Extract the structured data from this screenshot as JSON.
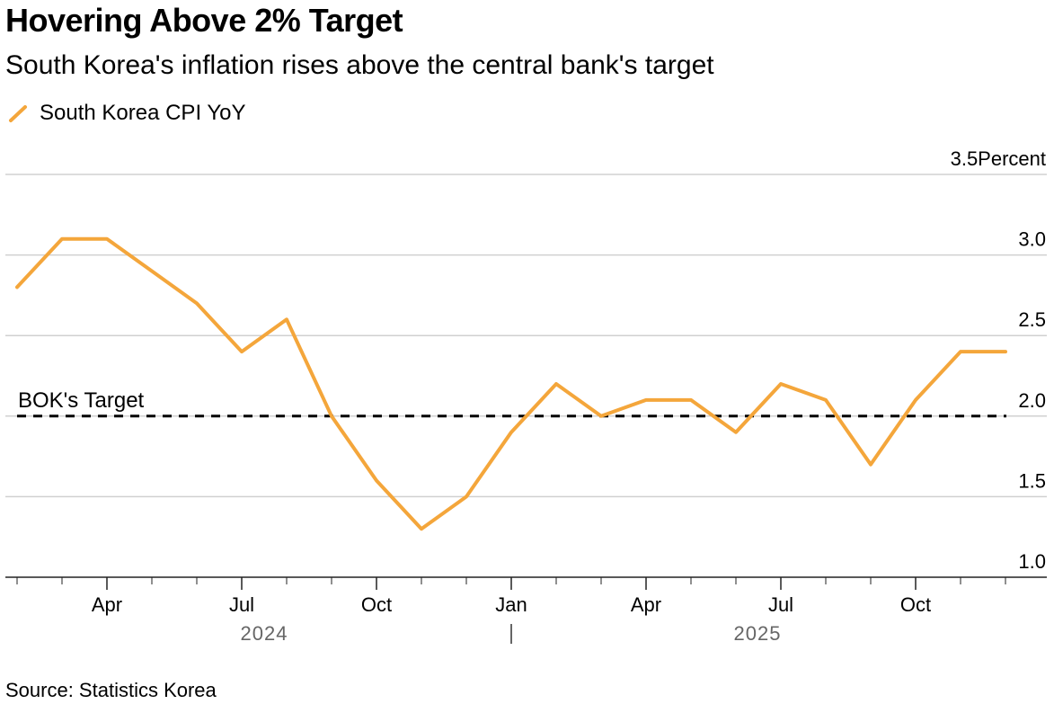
{
  "header": {
    "title": "Hovering Above 2% Target",
    "subtitle": "South Korea's inflation rises above the central bank's target"
  },
  "legend": {
    "label": "South Korea CPI YoY"
  },
  "source": "Source: Statistics Korea",
  "colors": {
    "series": "#f4a63b",
    "grid": "#d0d0d0",
    "axis": "#222222",
    "year_label": "#666666"
  },
  "chart_data": {
    "type": "line",
    "title": "Hovering Above 2% Target",
    "subtitle": "South Korea's inflation rises above the central bank's target",
    "ylabel": "Percent",
    "ylim": [
      1.0,
      3.5
    ],
    "yticks": [
      1.0,
      1.5,
      2.0,
      2.5,
      3.0,
      3.5
    ],
    "ytick_labels": [
      "1.0",
      "1.5",
      "2.0",
      "2.5",
      "3.0",
      "3.5Percent"
    ],
    "grid": true,
    "legend_position": "top-left",
    "x_tick_labels": [
      {
        "date": "2024-04",
        "label": "Apr"
      },
      {
        "date": "2024-07",
        "label": "Jul"
      },
      {
        "date": "2024-10",
        "label": "Oct"
      },
      {
        "date": "2025-01",
        "label": "Jan"
      },
      {
        "date": "2025-04",
        "label": "Apr"
      },
      {
        "date": "2025-07",
        "label": "Jul"
      },
      {
        "date": "2025-10",
        "label": "Oct"
      }
    ],
    "year_labels": [
      "2024",
      "2025"
    ],
    "series": [
      {
        "name": "South Korea CPI YoY",
        "x": [
          "2024-02",
          "2024-03",
          "2024-04",
          "2024-05",
          "2024-06",
          "2024-07",
          "2024-08",
          "2024-09",
          "2024-10",
          "2024-11",
          "2024-12",
          "2025-01",
          "2025-02",
          "2025-03",
          "2025-04",
          "2025-05",
          "2025-06",
          "2025-07",
          "2025-08",
          "2025-09",
          "2025-10",
          "2025-11",
          "2025-12"
        ],
        "values": [
          2.8,
          3.1,
          3.1,
          2.9,
          2.7,
          2.4,
          2.6,
          2.0,
          1.6,
          1.3,
          1.5,
          1.9,
          2.2,
          2.0,
          2.1,
          2.1,
          1.9,
          2.2,
          2.1,
          1.7,
          2.1,
          2.4,
          2.4
        ]
      }
    ],
    "reference_lines": [
      {
        "label": "BOK's Target",
        "value": 2.0
      }
    ]
  }
}
